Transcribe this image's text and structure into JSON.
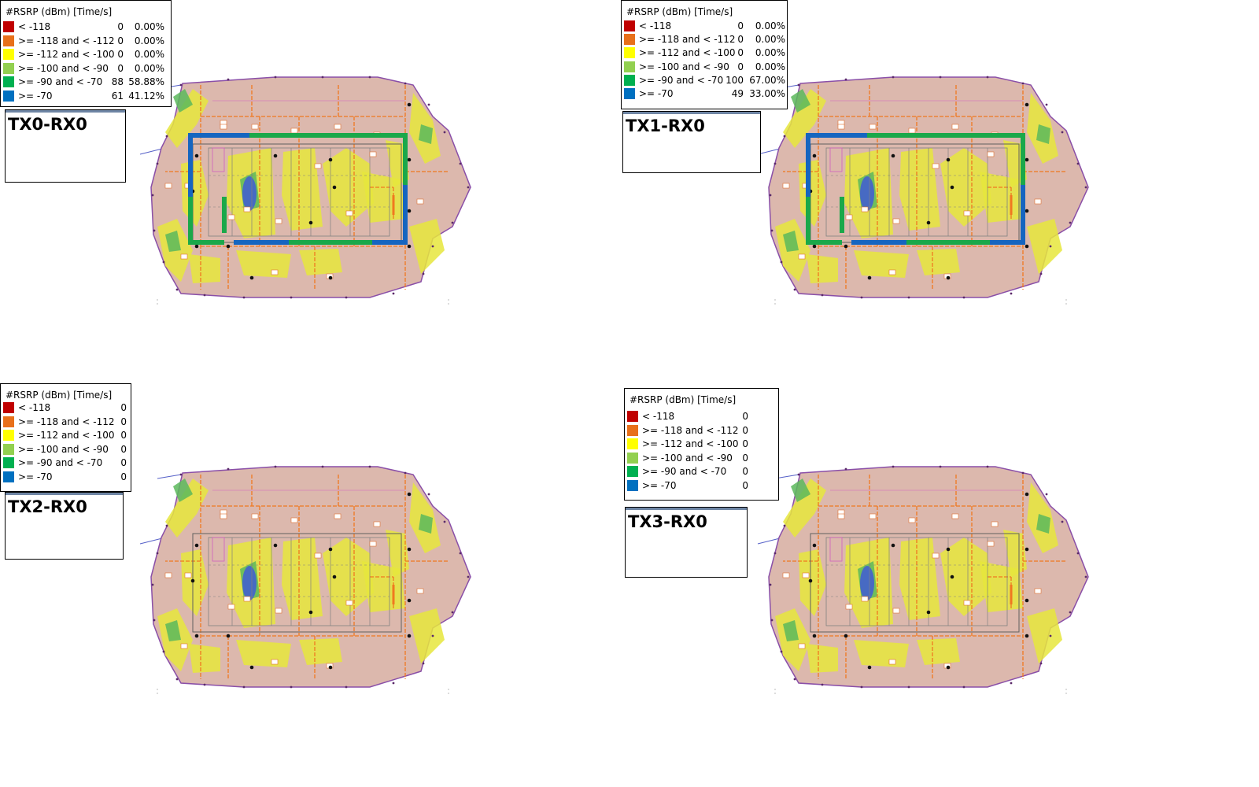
{
  "legend_title": "#RSRP (dBm) [Time/s]",
  "bins": [
    {
      "label": "< -118",
      "color": "#c00000"
    },
    {
      "label": ">= -118 and < -112",
      "color": "#e8701a"
    },
    {
      "label": ">= -112 and < -100",
      "color": "#ffff00"
    },
    {
      "label": ">= -100 and < -90",
      "color": "#92d050"
    },
    {
      "label": ">= -90 and < -70",
      "color": "#00b050"
    },
    {
      "label": ">= -70",
      "color": "#0070c0"
    }
  ],
  "panels": [
    {
      "title": "TX0-RX0",
      "counts": [
        "0",
        "0",
        "0",
        "0",
        "88",
        "61"
      ],
      "percents": [
        "0.00%",
        "0.00%",
        "0.00%",
        "0.00%",
        "58.88%",
        "41.12%"
      ],
      "route": true
    },
    {
      "title": "TX1-RX0",
      "counts": [
        "0",
        "0",
        "0",
        "0",
        "100",
        "49"
      ],
      "percents": [
        "0.00%",
        "0.00%",
        "0.00%",
        "0.00%",
        "67.00%",
        "33.00%"
      ],
      "route": true
    },
    {
      "title": "TX2-RX0",
      "counts": [
        "0",
        "0",
        "0",
        "0",
        "0",
        "0"
      ],
      "percents": [],
      "route": false
    },
    {
      "title": "TX3-RX0",
      "counts": [
        "0",
        "0",
        "0",
        "0",
        "0",
        "0"
      ],
      "percents": [],
      "route": false
    }
  ],
  "map_colors": {
    "floor": "#dcb8ad",
    "coverage_yellow": "#e6e63c",
    "coverage_green": "#5cb85c",
    "coverage_blue": "#3f5bd6",
    "wall_orange": "#f07820",
    "wall_gray": "#808080",
    "outline_purple": "#8a4fa8",
    "route_green": "#1aa84a",
    "route_blue": "#1565c0"
  }
}
